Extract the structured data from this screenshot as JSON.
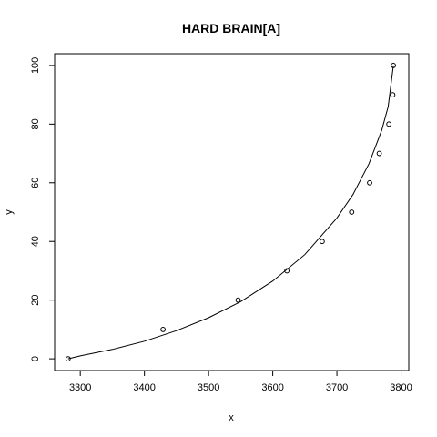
{
  "chart_data": {
    "type": "scatter",
    "title": "HARD BRAIN[A]",
    "xlabel": "x",
    "ylabel": "y",
    "xlim": [
      3260,
      3812
    ],
    "ylim": [
      -4,
      104
    ],
    "xticks": [
      3300,
      3400,
      3500,
      3600,
      3700,
      3800
    ],
    "yticks": [
      0,
      20,
      40,
      60,
      80,
      100
    ],
    "grid": false,
    "points": [
      {
        "x": 3281,
        "y": 0
      },
      {
        "x": 3429,
        "y": 10
      },
      {
        "x": 3546,
        "y": 20
      },
      {
        "x": 3622,
        "y": 30
      },
      {
        "x": 3677,
        "y": 40
      },
      {
        "x": 3723,
        "y": 50
      },
      {
        "x": 3751,
        "y": 60
      },
      {
        "x": 3766,
        "y": 70
      },
      {
        "x": 3781,
        "y": 80
      },
      {
        "x": 3787,
        "y": 90
      },
      {
        "x": 3788,
        "y": 100
      }
    ],
    "fit_curve": [
      {
        "x": 3281,
        "y": 0
      },
      {
        "x": 3300,
        "y": 1
      },
      {
        "x": 3350,
        "y": 3.2
      },
      {
        "x": 3400,
        "y": 6
      },
      {
        "x": 3450,
        "y": 9.6
      },
      {
        "x": 3500,
        "y": 14
      },
      {
        "x": 3550,
        "y": 19.5
      },
      {
        "x": 3600,
        "y": 26.5
      },
      {
        "x": 3650,
        "y": 35.5
      },
      {
        "x": 3700,
        "y": 48
      },
      {
        "x": 3725,
        "y": 56
      },
      {
        "x": 3750,
        "y": 66.5
      },
      {
        "x": 3770,
        "y": 78
      },
      {
        "x": 3780,
        "y": 86
      },
      {
        "x": 3788,
        "y": 100
      }
    ]
  }
}
